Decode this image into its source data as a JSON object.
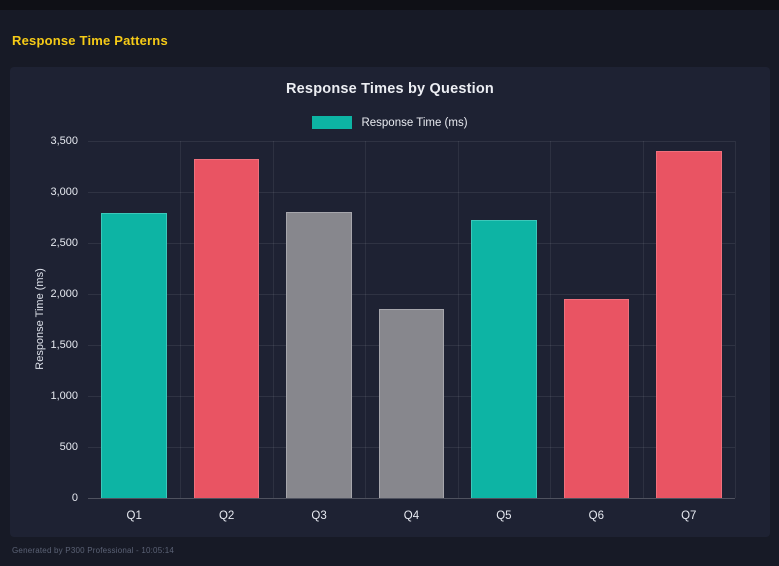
{
  "window": {
    "header_title": "Response Time Patterns",
    "footer_text": "Generated by P300 Professional - 10:05:14"
  },
  "colors": {
    "header_accent": "#f6cb17",
    "teal": "#0db4a4",
    "red": "#e95463",
    "gray": "#87878d",
    "panel_bg": "#1e2233",
    "page_bg": "#171a26"
  },
  "chart_data": {
    "type": "bar",
    "title": "Response Times by Question",
    "legend": [
      {
        "label": "Response Time (ms)",
        "color": "#0db4a4"
      }
    ],
    "legend_position": "top",
    "xlabel": "",
    "ylabel": "Response Time (ms)",
    "categories": [
      "Q1",
      "Q2",
      "Q3",
      "Q4",
      "Q5",
      "Q6",
      "Q7"
    ],
    "values": [
      2790,
      3325,
      2805,
      1850,
      2725,
      1950,
      3400
    ],
    "bar_colors": [
      "#0db4a4",
      "#e95463",
      "#87878d",
      "#87878d",
      "#0db4a4",
      "#e95463",
      "#e95463"
    ],
    "bar_border_colors": [
      "#3cc8ba",
      "#f0707c",
      "#a6a6ac",
      "#a6a6ac",
      "#3cc8ba",
      "#f0707c",
      "#f0707c"
    ],
    "ylim": [
      0,
      3500
    ],
    "ytick_step": 500,
    "ytick_labels": [
      "0",
      "500",
      "1,000",
      "1,500",
      "2,000",
      "2,500",
      "3,000",
      "3,500"
    ],
    "grid": true
  }
}
